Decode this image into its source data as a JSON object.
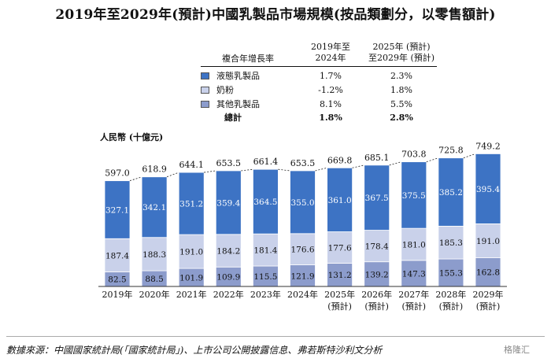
{
  "title": "2019年至2029年(預計)中國乳製品市場規模(按品類劃分，以零售額計)",
  "cagr_table": {
    "header_label": "複合年增長率",
    "col1_line1": "2019年至",
    "col1_line2": "2024年",
    "col2_line1": "2025年 (預計)",
    "col2_line2": "至2029年 (預計)",
    "rows": [
      {
        "name": "液態乳製品",
        "v1": "1.7%",
        "v2": "2.3%",
        "color": "#3d73c4"
      },
      {
        "name": "奶粉",
        "v1": "-1.2%",
        "v2": "1.8%",
        "color": "#c9d1ea"
      },
      {
        "name": "其他乳製品",
        "v1": "8.1%",
        "v2": "5.5%",
        "color": "#8c9ccc"
      }
    ],
    "total": {
      "name": "總計",
      "v1": "1.8%",
      "v2": "2.8%"
    }
  },
  "unit_label": "人民幣 (十億元)",
  "source": "數據來源：中國國家統計局(「國家統計局」)、上市公司公開披露信息、弗若斯特沙利文分析",
  "watermark": "格隆汇",
  "chart_data": {
    "type": "bar",
    "stacked": true,
    "title": "2019年至2029年(預計)中國乳製品市場規模(按品類劃分，以零售額計)",
    "ylabel": "人民幣 (十億元)",
    "ylim": [
      0,
      800
    ],
    "categories": [
      "2019年",
      "2020年",
      "2021年",
      "2022年",
      "2023年",
      "2024年",
      "2025年",
      "2026年",
      "2027年",
      "2028年",
      "2029年"
    ],
    "category_sublabels": [
      "",
      "",
      "",
      "",
      "",
      "",
      "(預計)",
      "(預計)",
      "(預計)",
      "(預計)",
      "(預計)"
    ],
    "totals": [
      597.0,
      618.9,
      644.1,
      653.5,
      661.4,
      653.5,
      669.8,
      685.1,
      703.8,
      725.8,
      749.2
    ],
    "totals_labels": [
      "597.0",
      "618.9",
      "644.1",
      "653.5",
      "661.4",
      "653.5",
      "669.8",
      "685.1",
      "703.8",
      "725.8",
      "749.2"
    ],
    "series": [
      {
        "name": "其他乳製品",
        "color": "#8c9ccc",
        "text_color": "#111111",
        "values": [
          82.5,
          88.5,
          101.9,
          109.9,
          115.5,
          121.9,
          131.2,
          139.2,
          147.3,
          155.3,
          162.8
        ],
        "labels": [
          "82.5",
          "88.5",
          "101.9",
          "109.9",
          "115.5",
          "121.9",
          "131.2",
          "139.2",
          "147.3",
          "155.3",
          "162.8"
        ]
      },
      {
        "name": "奶粉",
        "color": "#c9d1ea",
        "text_color": "#111111",
        "values": [
          187.4,
          188.3,
          191.0,
          184.2,
          181.4,
          176.6,
          177.6,
          178.4,
          181.0,
          185.3,
          191.0
        ],
        "labels": [
          "187.4",
          "188.3",
          "191.0",
          "184.2",
          "181.4",
          "176.6",
          "177.6",
          "178.4",
          "181.0",
          "185.3",
          "191.0"
        ]
      },
      {
        "name": "液態乳製品",
        "color": "#3d73c4",
        "text_color": "#ffffff",
        "values": [
          327.1,
          342.1,
          351.2,
          359.4,
          364.5,
          355.0,
          361.0,
          367.5,
          375.5,
          385.2,
          395.4
        ],
        "labels": [
          "327.1",
          "342.1",
          "351.2",
          "359.4",
          "364.5",
          "355.0",
          "361.0",
          "367.5",
          "375.5",
          "385.2",
          "395.4"
        ]
      }
    ]
  }
}
